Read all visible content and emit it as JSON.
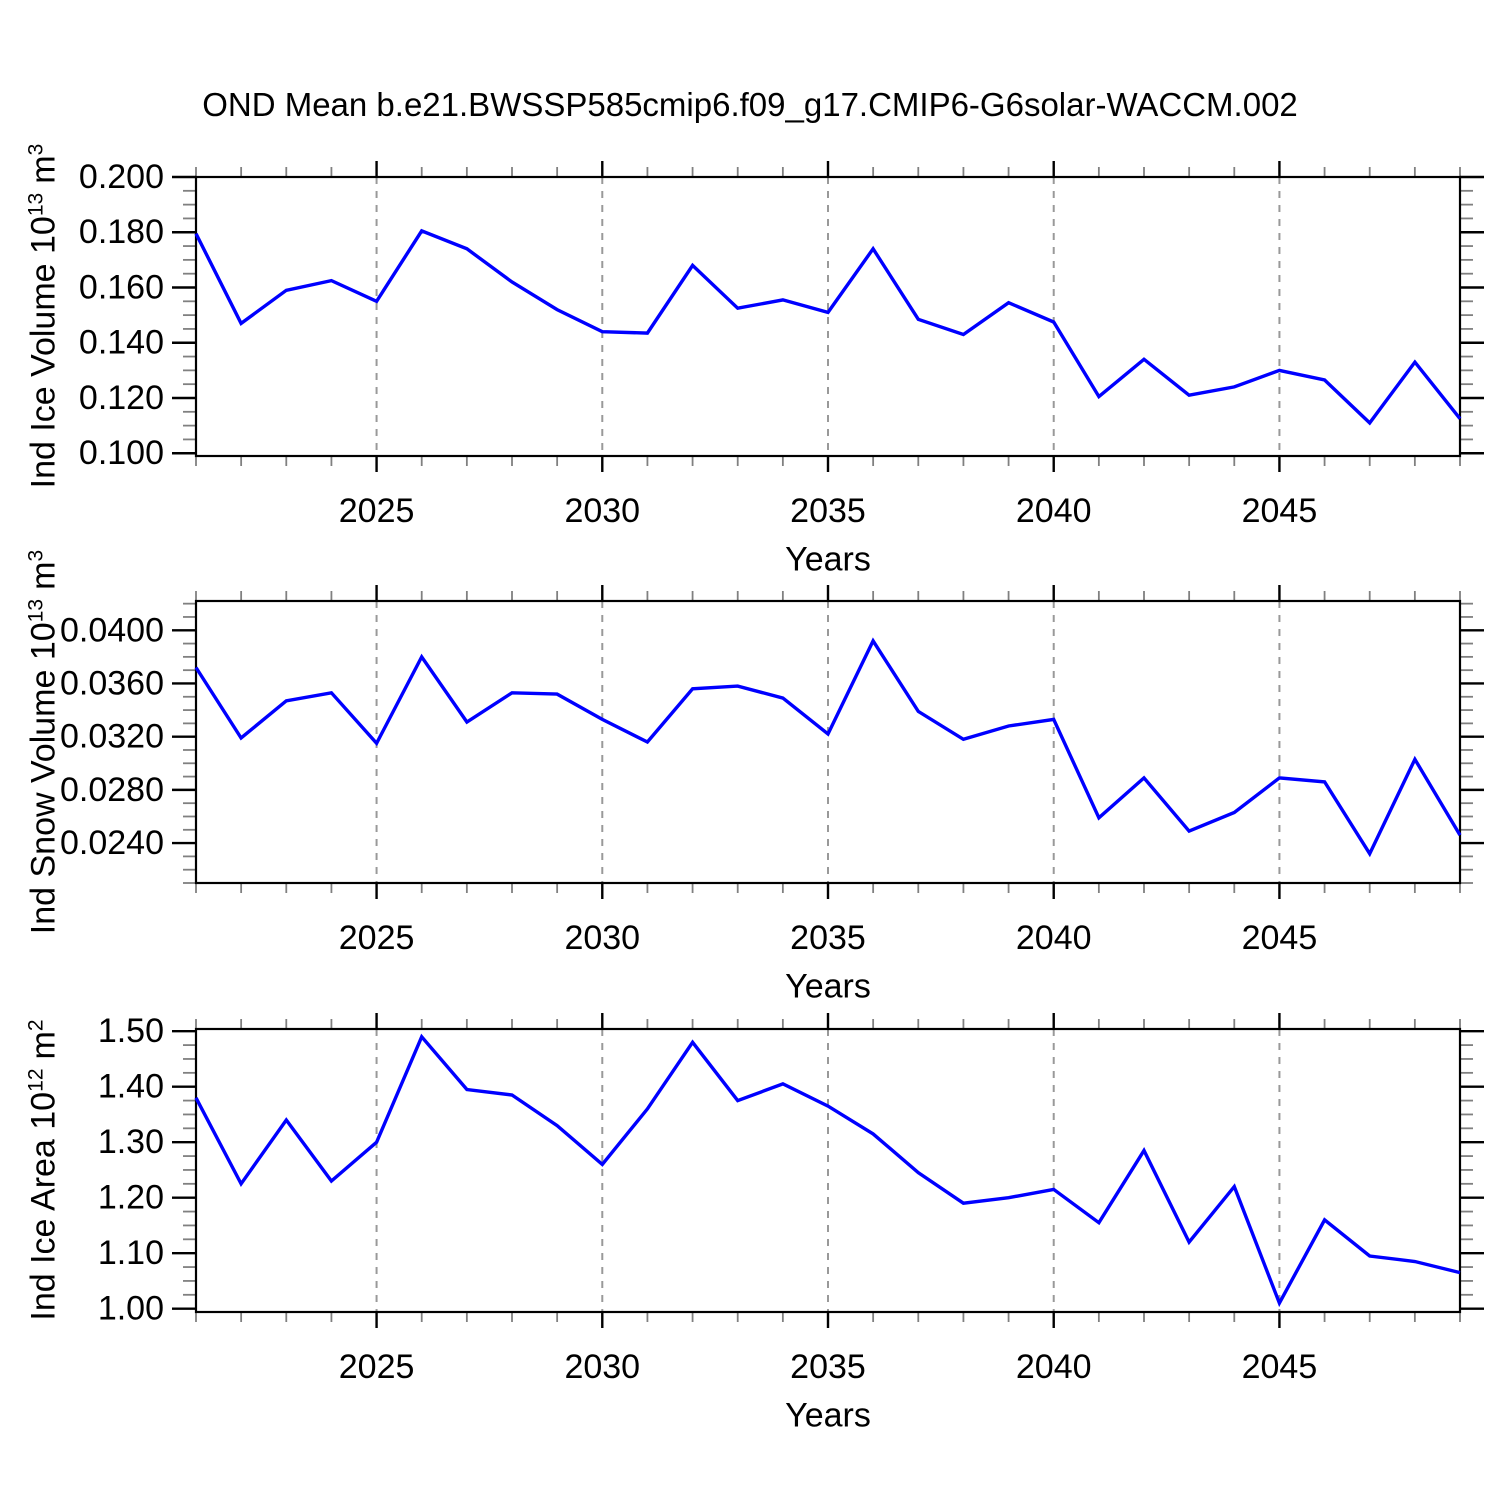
{
  "title": "OND Mean b.e21.BWSSP585cmip6.f09_g17.CMIP6-G6solar-WACCM.002",
  "chart_data": [
    {
      "type": "line",
      "name": "ind-ice-volume",
      "ylabel": {
        "base": "Ind Ice Volume 10",
        "base_exp": "13",
        "unit": "m",
        "unit_exp": "3"
      },
      "xlabel": "Years",
      "x": [
        2021,
        2022,
        2023,
        2024,
        2025,
        2026,
        2027,
        2028,
        2029,
        2030,
        2031,
        2032,
        2033,
        2034,
        2035,
        2036,
        2037,
        2038,
        2039,
        2040,
        2041,
        2042,
        2043,
        2044,
        2045,
        2046,
        2047,
        2048,
        2049
      ],
      "values": [
        0.1795,
        0.147,
        0.159,
        0.1625,
        0.155,
        0.1805,
        0.174,
        0.162,
        0.152,
        0.144,
        0.1435,
        0.168,
        0.1525,
        0.1555,
        0.151,
        0.174,
        0.1485,
        0.143,
        0.1545,
        0.1475,
        0.1205,
        0.134,
        0.121,
        0.124,
        0.13,
        0.1265,
        0.111,
        0.133,
        0.1125
      ],
      "xlim": [
        2021,
        2049
      ],
      "ylim": [
        0.099,
        0.2
      ],
      "yticks_major": [
        0.1,
        0.12,
        0.14,
        0.16,
        0.18,
        0.2
      ],
      "ytick_labels": [
        "0.100",
        "0.120",
        "0.140",
        "0.160",
        "0.180",
        "0.200"
      ],
      "y_minor_step": 0.005,
      "xticks_major": [
        2025,
        2030,
        2035,
        2040,
        2045
      ],
      "xtick_labels": [
        "2025",
        "2030",
        "2035",
        "2040",
        "2045"
      ],
      "x_minor_step": 1,
      "grid": "dashed-vertical-at-major-xticks",
      "line_color": "#0000ff"
    },
    {
      "type": "line",
      "name": "ind-snow-volume",
      "ylabel": {
        "base": "Ind Snow Volume 10",
        "base_exp": "13",
        "unit": "m",
        "unit_exp": "3"
      },
      "xlabel": "Years",
      "x": [
        2021,
        2022,
        2023,
        2024,
        2025,
        2026,
        2027,
        2028,
        2029,
        2030,
        2031,
        2032,
        2033,
        2034,
        2035,
        2036,
        2037,
        2038,
        2039,
        2040,
        2041,
        2042,
        2043,
        2044,
        2045,
        2046,
        2047,
        2048,
        2049
      ],
      "values": [
        0.0372,
        0.0319,
        0.0347,
        0.0353,
        0.0315,
        0.038,
        0.0331,
        0.0353,
        0.0352,
        0.0333,
        0.0316,
        0.0356,
        0.0358,
        0.0349,
        0.0322,
        0.0392,
        0.0339,
        0.0318,
        0.0328,
        0.0333,
        0.0259,
        0.0289,
        0.0249,
        0.0263,
        0.0289,
        0.0286,
        0.0232,
        0.0303,
        0.0246
      ],
      "xlim": [
        2021,
        2049
      ],
      "ylim": [
        0.021,
        0.0422
      ],
      "yticks_major": [
        0.024,
        0.028,
        0.032,
        0.036,
        0.04
      ],
      "ytick_labels": [
        "0.0240",
        "0.0280",
        "0.0320",
        "0.0360",
        "0.0400"
      ],
      "y_minor_step": 0.001,
      "xticks_major": [
        2025,
        2030,
        2035,
        2040,
        2045
      ],
      "xtick_labels": [
        "2025",
        "2030",
        "2035",
        "2040",
        "2045"
      ],
      "x_minor_step": 1,
      "grid": "dashed-vertical-at-major-xticks",
      "line_color": "#0000ff"
    },
    {
      "type": "line",
      "name": "ind-ice-area",
      "ylabel": {
        "base": "Ind Ice Area 10",
        "base_exp": "12",
        "unit": "m",
        "unit_exp": "2"
      },
      "xlabel": "Years",
      "x": [
        2021,
        2022,
        2023,
        2024,
        2025,
        2026,
        2027,
        2028,
        2029,
        2030,
        2031,
        2032,
        2033,
        2034,
        2035,
        2036,
        2037,
        2038,
        2039,
        2040,
        2041,
        2042,
        2043,
        2044,
        2045,
        2046,
        2047,
        2048,
        2049
      ],
      "values": [
        1.38,
        1.225,
        1.34,
        1.23,
        1.3,
        1.49,
        1.395,
        1.385,
        1.33,
        1.26,
        1.36,
        1.48,
        1.375,
        1.405,
        1.365,
        1.315,
        1.245,
        1.19,
        1.2,
        1.215,
        1.155,
        1.285,
        1.12,
        1.22,
        1.01,
        1.16,
        1.095,
        1.085,
        1.065
      ],
      "xlim": [
        2021,
        2049
      ],
      "ylim": [
        0.994,
        1.504
      ],
      "yticks_major": [
        1.0,
        1.1,
        1.2,
        1.3,
        1.4,
        1.5
      ],
      "ytick_labels": [
        "1.00",
        "1.10",
        "1.20",
        "1.30",
        "1.40",
        "1.50"
      ],
      "y_minor_step": 0.025,
      "xticks_major": [
        2025,
        2030,
        2035,
        2040,
        2045
      ],
      "xtick_labels": [
        "2025",
        "2030",
        "2035",
        "2040",
        "2045"
      ],
      "x_minor_step": 1,
      "grid": "dashed-vertical-at-major-xticks",
      "line_color": "#0000ff"
    }
  ],
  "style_colors": {
    "frame": "#000000",
    "minor_tick": "#808080",
    "gridline": "#999999",
    "text": "#000000"
  }
}
